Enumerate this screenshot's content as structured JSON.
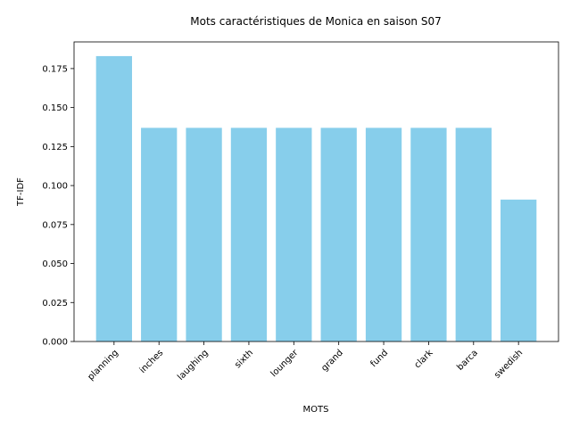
{
  "chart_data": {
    "type": "bar",
    "title": "Mots caractéristiques de Monica en saison S07",
    "xlabel": "MOTS",
    "ylabel": "TF-IDF",
    "categories": [
      "planning",
      "inches",
      "laughing",
      "sixth",
      "lounger",
      "grand",
      "fund",
      "clark",
      "barca",
      "swedish"
    ],
    "values": [
      0.183,
      0.137,
      0.137,
      0.137,
      0.137,
      0.137,
      0.137,
      0.137,
      0.137,
      0.091
    ],
    "ylim": [
      0,
      0.1921
    ],
    "yticks": [
      "0.000",
      "0.025",
      "0.050",
      "0.075",
      "0.100",
      "0.125",
      "0.150",
      "0.175"
    ],
    "bar_color": "#87ceeb",
    "grid": false,
    "legend": "none"
  }
}
